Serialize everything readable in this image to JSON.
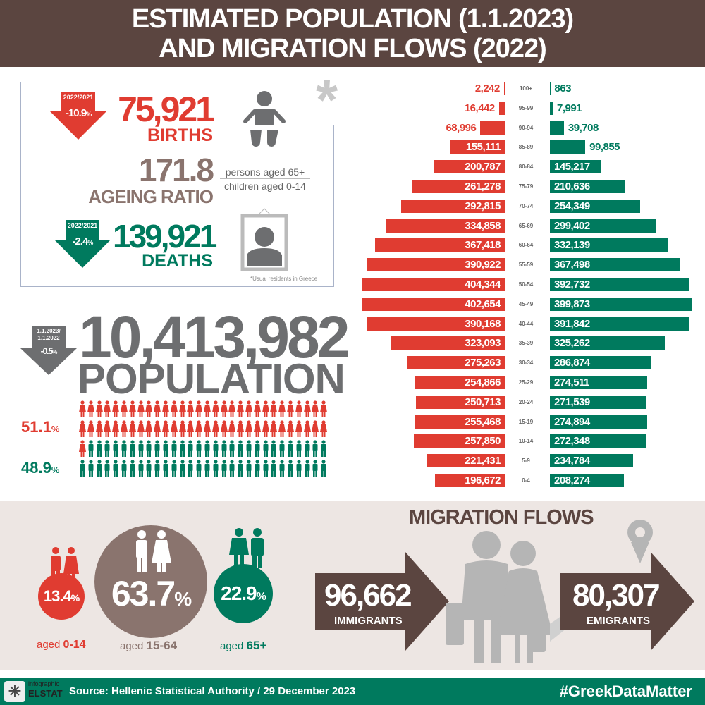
{
  "header": {
    "line1": "ESTIMATED POPULATION (1.1.2023)",
    "line2": "AND MIGRATION FLOWS (2022)"
  },
  "births": {
    "period": "2022/2021",
    "change": "-10.9",
    "unit": "%",
    "value": "75,921",
    "label": "BIRTHS"
  },
  "ageing": {
    "value": "171.8",
    "label": "AGEING RATIO",
    "numerator": "persons aged 65+",
    "denominator": "children aged 0-14"
  },
  "deaths": {
    "period": "2022/2021",
    "change": "-2.4",
    "unit": "%",
    "value": "139,921",
    "label": "DEATHS"
  },
  "footnote": "*Usual residents in Greece",
  "asterisk": "*",
  "population": {
    "period_line1": "1.1.2023/",
    "period_line2": "1.1.2022",
    "change": "-0.5",
    "unit": "%",
    "value": "10,413,982",
    "label": "POPULATION",
    "female_pct": "51.1",
    "male_pct": "48.9",
    "pct_unit": "%"
  },
  "age_groups": [
    {
      "pct": "13.4",
      "unit": "%",
      "label_prefix": "aged ",
      "label_range": "0-14"
    },
    {
      "pct": "63.7",
      "unit": "%",
      "label_prefix": "aged ",
      "label_range": "15-64"
    },
    {
      "pct": "22.9",
      "unit": "%",
      "label_prefix": "aged ",
      "label_range": "65+"
    }
  ],
  "migration": {
    "title": "MIGRATION FLOWS",
    "immigrants_value": "96,662",
    "immigrants_label": "IMMIGRANTS",
    "emigrants_value": "80,307",
    "emigrants_label": "EMIGRANTS"
  },
  "footer": {
    "logo_top": "infographic",
    "logo_bottom": "ELSTAT",
    "source": "Source: Hellenic Statistical Authority / 29 December 2023",
    "hashtag": "#GreekDataMatter"
  },
  "colors": {
    "female": "#e03c31",
    "male": "#007a5e",
    "header": "#5b4540",
    "grey": "#6d6e70",
    "brown": "#8a746e"
  },
  "chart_data": {
    "type": "bar",
    "orientation": "horizontal population pyramid",
    "categories": [
      "100+",
      "95-99",
      "90-94",
      "85-89",
      "80-84",
      "75-79",
      "70-74",
      "65-69",
      "60-64",
      "55-59",
      "50-54",
      "45-49",
      "40-44",
      "35-39",
      "30-34",
      "25-29",
      "20-24",
      "15-19",
      "10-14",
      "5-9",
      "0-4"
    ],
    "series": [
      {
        "side": "left",
        "color": "#e03c31",
        "values": [
          2242,
          16442,
          68996,
          155111,
          200787,
          261278,
          292815,
          334858,
          367418,
          390922,
          404344,
          402654,
          390168,
          323093,
          275263,
          254866,
          250713,
          255468,
          257850,
          221431,
          196672
        ]
      },
      {
        "side": "right",
        "color": "#007a5e",
        "values": [
          863,
          7991,
          39708,
          99855,
          145217,
          210636,
          254349,
          299402,
          332139,
          367498,
          392732,
          399873,
          391842,
          325262,
          286874,
          274511,
          271539,
          274894,
          272348,
          234784,
          208274
        ]
      }
    ]
  }
}
